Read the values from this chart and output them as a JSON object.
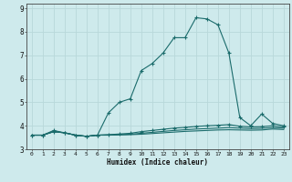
{
  "title": "",
  "xlabel": "Humidex (Indice chaleur)",
  "bg_color": "#ceeaec",
  "grid_color": "#b8d8da",
  "line_color": "#1a6b6b",
  "xlim": [
    -0.5,
    23.5
  ],
  "ylim": [
    3.0,
    9.2
  ],
  "yticks": [
    3,
    4,
    5,
    6,
    7,
    8,
    9
  ],
  "xticks": [
    0,
    1,
    2,
    3,
    4,
    5,
    6,
    7,
    8,
    9,
    10,
    11,
    12,
    13,
    14,
    15,
    16,
    17,
    18,
    19,
    20,
    21,
    22,
    23
  ],
  "series": [
    {
      "x": [
        0,
        1,
        2,
        3,
        4,
        5,
        6,
        7,
        8,
        9,
        10,
        11,
        12,
        13,
        14,
        15,
        16,
        17,
        18,
        19,
        20,
        21,
        22,
        23
      ],
      "y": [
        3.6,
        3.6,
        3.8,
        3.7,
        3.6,
        3.55,
        3.6,
        4.55,
        5.0,
        5.15,
        6.35,
        6.65,
        7.1,
        7.75,
        7.75,
        8.6,
        8.55,
        8.3,
        7.1,
        4.35,
        4.0,
        4.5,
        4.1,
        4.0
      ],
      "marker": "+"
    },
    {
      "x": [
        0,
        1,
        2,
        3,
        4,
        5,
        6,
        7,
        8,
        9,
        10,
        11,
        12,
        13,
        14,
        15,
        16,
        17,
        18,
        19,
        20,
        21,
        22,
        23
      ],
      "y": [
        3.6,
        3.6,
        3.75,
        3.7,
        3.6,
        3.55,
        3.6,
        3.62,
        3.65,
        3.68,
        3.75,
        3.8,
        3.85,
        3.9,
        3.93,
        3.97,
        4.0,
        4.02,
        4.05,
        3.98,
        3.95,
        3.96,
        4.0,
        3.95
      ],
      "marker": "+"
    },
    {
      "x": [
        0,
        1,
        2,
        3,
        4,
        5,
        6,
        7,
        8,
        9,
        10,
        11,
        12,
        13,
        14,
        15,
        16,
        17,
        18,
        19,
        20,
        21,
        22,
        23
      ],
      "y": [
        3.6,
        3.6,
        3.75,
        3.7,
        3.6,
        3.55,
        3.6,
        3.61,
        3.62,
        3.64,
        3.68,
        3.72,
        3.76,
        3.8,
        3.83,
        3.86,
        3.88,
        3.9,
        3.92,
        3.9,
        3.88,
        3.89,
        3.92,
        3.9
      ],
      "marker": null
    },
    {
      "x": [
        0,
        1,
        2,
        3,
        4,
        5,
        6,
        7,
        8,
        9,
        10,
        11,
        12,
        13,
        14,
        15,
        16,
        17,
        18,
        19,
        20,
        21,
        22,
        23
      ],
      "y": [
        3.6,
        3.6,
        3.75,
        3.7,
        3.6,
        3.55,
        3.6,
        3.6,
        3.61,
        3.62,
        3.64,
        3.67,
        3.7,
        3.73,
        3.76,
        3.78,
        3.8,
        3.82,
        3.83,
        3.82,
        3.81,
        3.82,
        3.86,
        3.84
      ],
      "marker": null
    }
  ]
}
